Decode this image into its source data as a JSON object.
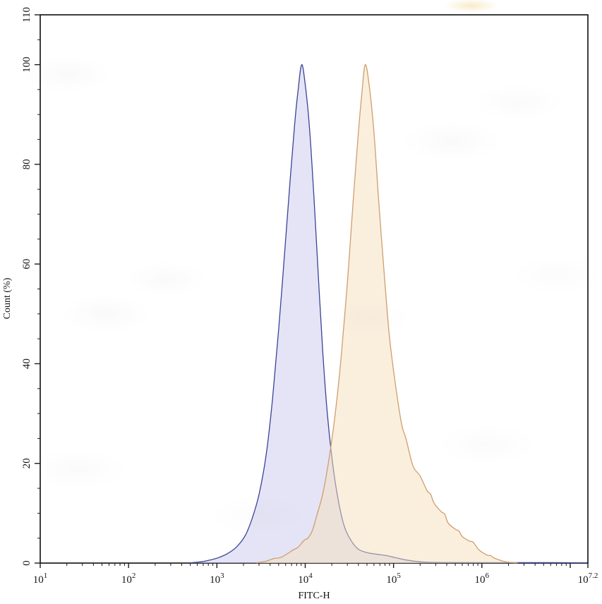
{
  "chart_data": {
    "type": "area",
    "subtype": "flow-cytometry-overlay-histogram",
    "title": "",
    "xlabel": "FITC-H",
    "ylabel": "Count (%)",
    "x_scale": "log10",
    "xlim_log": [
      1,
      7.2
    ],
    "ylim": [
      0,
      110
    ],
    "grid": false,
    "frame": true,
    "legend": null,
    "axis_color": "#1c1c1c",
    "y_major_ticks": [
      0,
      20,
      40,
      60,
      80,
      100,
      110
    ],
    "y_minor_step": 5,
    "x_major_exponents": [
      1,
      2,
      3,
      4,
      5,
      6,
      7
    ],
    "x_tick_labels": [
      {
        "log": 1,
        "base": "10",
        "exp": "1"
      },
      {
        "log": 2,
        "base": "10",
        "exp": "2"
      },
      {
        "log": 3,
        "base": "10",
        "exp": "3"
      },
      {
        "log": 4,
        "base": "10",
        "exp": "4"
      },
      {
        "log": 5,
        "base": "10",
        "exp": "5"
      },
      {
        "log": 6,
        "base": "10",
        "exp": "6"
      },
      {
        "log": 7.2,
        "base": "10",
        "exp": "7.2"
      }
    ],
    "series": [
      {
        "name": "blue-histogram",
        "stroke": "#3a4397",
        "fill": "#c9c9ee",
        "fill_opacity": 0.5,
        "points": [
          [
            2.7,
            0.05
          ],
          [
            2.82,
            0.25
          ],
          [
            2.92,
            0.6
          ],
          [
            3.02,
            1.1
          ],
          [
            3.12,
            1.9
          ],
          [
            3.22,
            3.2
          ],
          [
            3.32,
            5.5
          ],
          [
            3.4,
            9
          ],
          [
            3.48,
            14
          ],
          [
            3.56,
            22
          ],
          [
            3.63,
            33
          ],
          [
            3.7,
            47
          ],
          [
            3.77,
            63
          ],
          [
            3.83,
            77
          ],
          [
            3.88,
            88
          ],
          [
            3.92,
            95
          ],
          [
            3.96,
            100
          ],
          [
            4.0,
            96
          ],
          [
            4.05,
            87
          ],
          [
            4.1,
            73
          ],
          [
            4.15,
            57
          ],
          [
            4.2,
            42
          ],
          [
            4.25,
            30
          ],
          [
            4.31,
            20
          ],
          [
            4.37,
            13
          ],
          [
            4.44,
            7.5
          ],
          [
            4.52,
            4.5
          ],
          [
            4.6,
            2.8
          ],
          [
            4.7,
            2.1
          ],
          [
            4.8,
            1.8
          ],
          [
            4.92,
            1.5
          ],
          [
            5.02,
            1.1
          ],
          [
            5.12,
            0.7
          ],
          [
            5.25,
            0.35
          ],
          [
            5.4,
            0.15
          ],
          [
            5.7,
            0.1
          ],
          [
            6.2,
            0.08
          ],
          [
            6.8,
            0.08
          ],
          [
            7.18,
            0.05
          ]
        ]
      },
      {
        "name": "orange-histogram",
        "stroke": "#cf9e6e",
        "fill": "#f5e0bb",
        "fill_opacity": 0.5,
        "points": [
          [
            3.45,
            0.05
          ],
          [
            3.56,
            0.4
          ],
          [
            3.64,
            0.9
          ],
          [
            3.72,
            1.1
          ],
          [
            3.8,
            1.9
          ],
          [
            3.86,
            2.6
          ],
          [
            3.92,
            3.2
          ],
          [
            3.99,
            4.6
          ],
          [
            4.03,
            5.0
          ],
          [
            4.08,
            6.5
          ],
          [
            4.13,
            9.5
          ],
          [
            4.2,
            14
          ],
          [
            4.27,
            21
          ],
          [
            4.34,
            30
          ],
          [
            4.41,
            42
          ],
          [
            4.48,
            57
          ],
          [
            4.54,
            72
          ],
          [
            4.6,
            86
          ],
          [
            4.64,
            94
          ],
          [
            4.68,
            100
          ],
          [
            4.73,
            95
          ],
          [
            4.78,
            86
          ],
          [
            4.83,
            73
          ],
          [
            4.89,
            59
          ],
          [
            4.95,
            46
          ],
          [
            5.02,
            36
          ],
          [
            5.09,
            28
          ],
          [
            5.14,
            25
          ],
          [
            5.22,
            19.5
          ],
          [
            5.3,
            17.5
          ],
          [
            5.38,
            14.5
          ],
          [
            5.42,
            13.8
          ],
          [
            5.46,
            12
          ],
          [
            5.54,
            10.3
          ],
          [
            5.58,
            9.8
          ],
          [
            5.62,
            8
          ],
          [
            5.7,
            6.8
          ],
          [
            5.74,
            6.4
          ],
          [
            5.78,
            5.3
          ],
          [
            5.86,
            4.4
          ],
          [
            5.9,
            4.2
          ],
          [
            5.97,
            2.6
          ],
          [
            6.06,
            1.6
          ],
          [
            6.1,
            1.5
          ],
          [
            6.14,
            1.0
          ],
          [
            6.24,
            0.4
          ],
          [
            6.34,
            0.1
          ],
          [
            6.4,
            0.05
          ]
        ]
      }
    ]
  }
}
